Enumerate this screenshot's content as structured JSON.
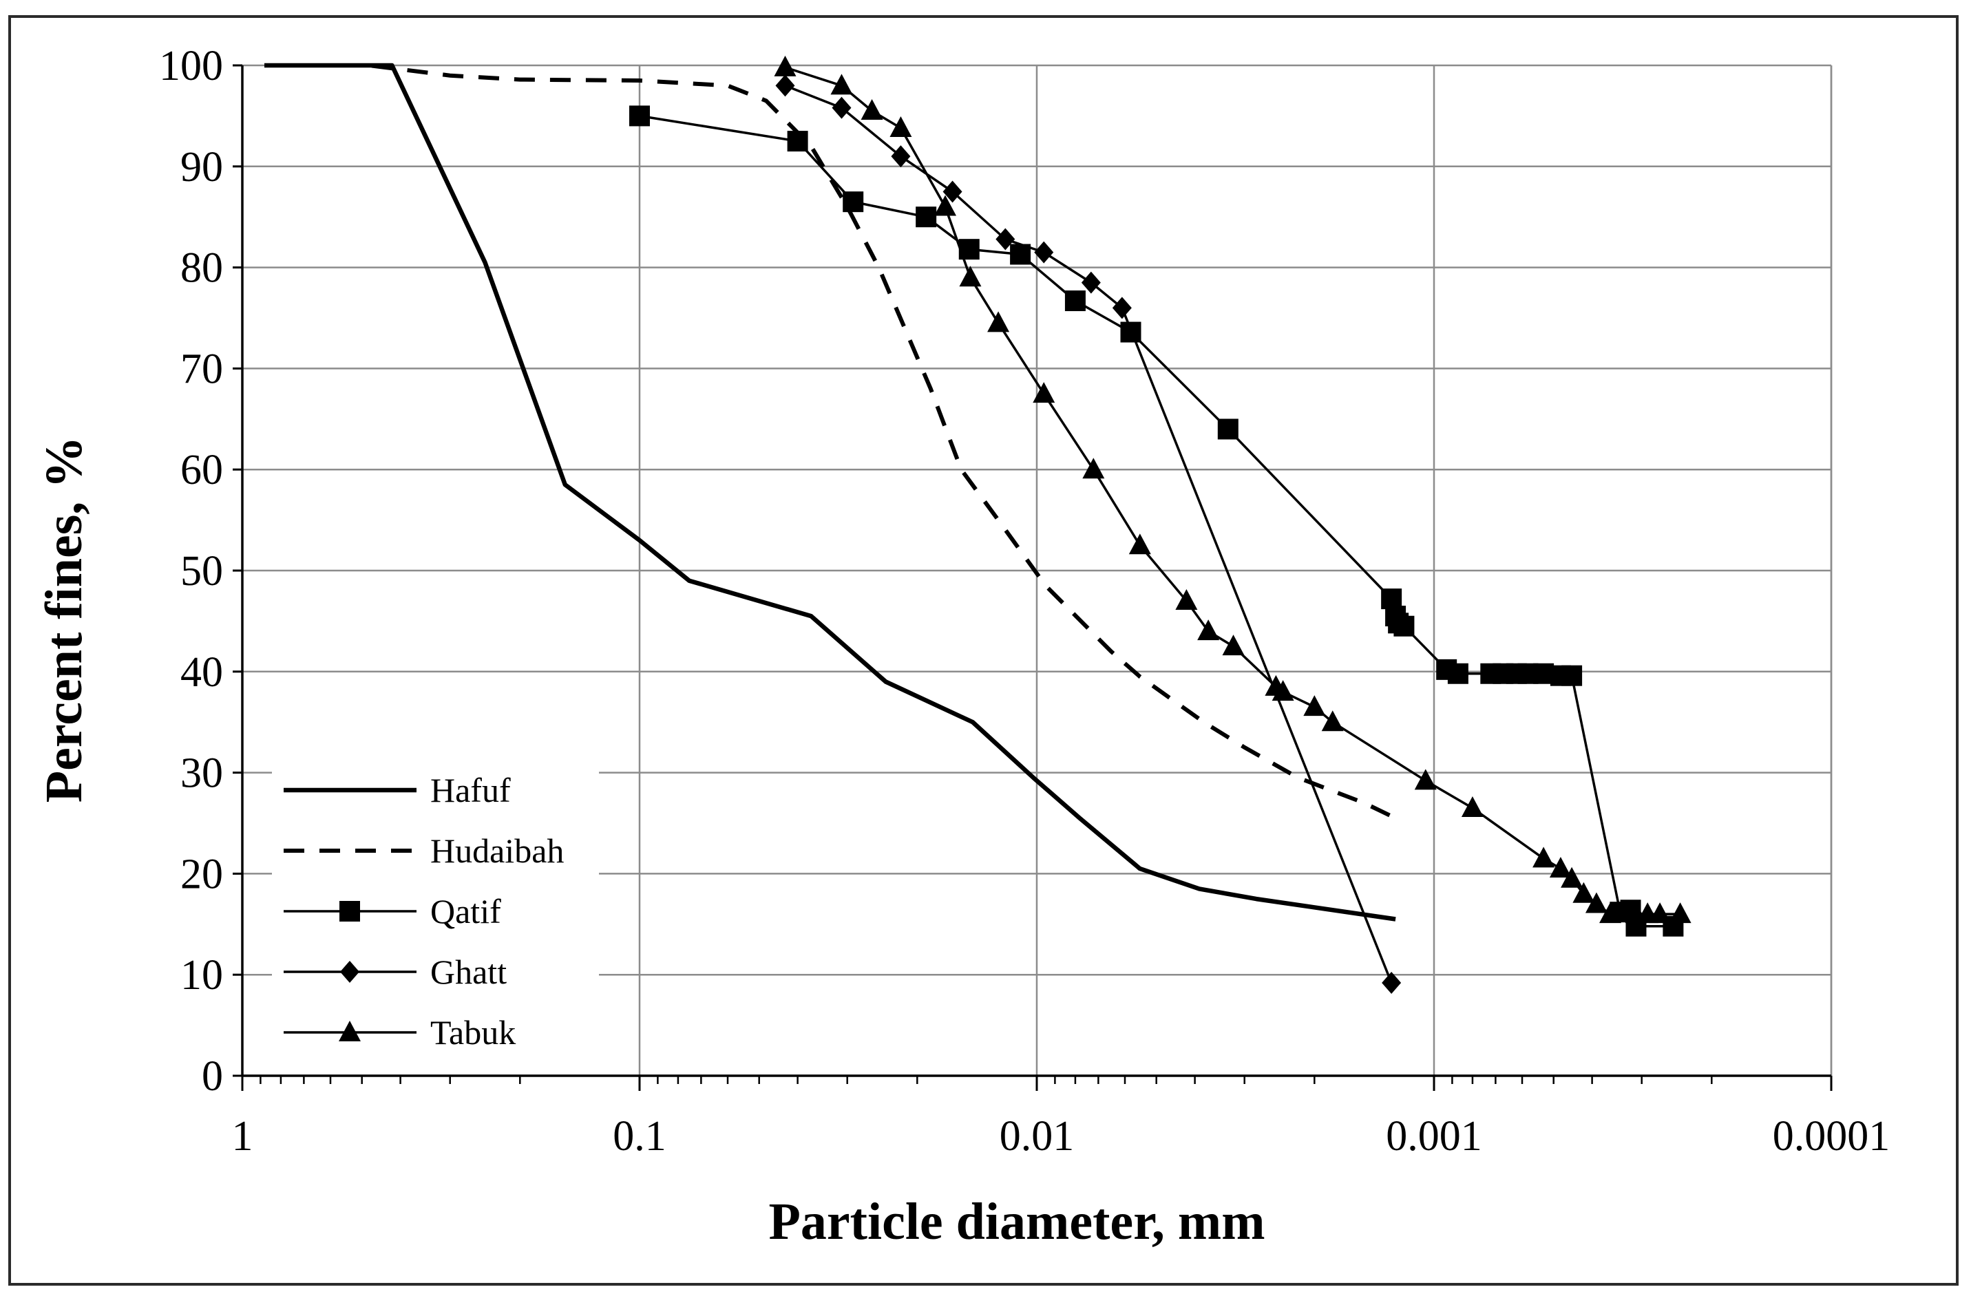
{
  "chart_data": {
    "type": "line",
    "title": "",
    "xlabel": "Particle diameter, mm",
    "ylabel": "Percent fines, %",
    "xscale": "log",
    "xaxis_reversed": true,
    "xlim": [
      1,
      0.0001
    ],
    "ylim": [
      0,
      100
    ],
    "x_ticks": [
      {
        "value": 1,
        "label": "1"
      },
      {
        "value": 0.1,
        "label": "0.1"
      },
      {
        "value": 0.01,
        "label": "0.01"
      },
      {
        "value": 0.001,
        "label": "0.001"
      },
      {
        "value": 0.0001,
        "label": "0.0001"
      }
    ],
    "y_ticks": [
      0,
      10,
      20,
      30,
      40,
      50,
      60,
      70,
      80,
      90,
      100
    ],
    "grid": true,
    "legend_position": "bottom-left",
    "series": [
      {
        "name": "Hafuf",
        "style": "solid-thick",
        "marker": "none",
        "x": [
          0.88,
          0.42,
          0.245,
          0.154,
          0.1,
          0.075,
          0.037,
          0.024,
          0.0145,
          0.0102,
          0.0078,
          0.0055,
          0.0039,
          0.0028,
          0.00125
        ],
        "y": [
          100,
          100,
          80.5,
          58.5,
          53,
          49,
          45.5,
          39,
          35,
          29.5,
          25.5,
          20.5,
          18.5,
          17.5,
          15.5
        ]
      },
      {
        "name": "Hudaibah",
        "style": "dashed",
        "marker": "none",
        "x": [
          0.88,
          0.48,
          0.3,
          0.2,
          0.1,
          0.06,
          0.048,
          0.037,
          0.03,
          0.025,
          0.0185,
          0.0155,
          0.0125,
          0.0095,
          0.0065,
          0.0055,
          0.0038,
          0.003,
          0.0022,
          0.0015,
          0.00125
        ],
        "y": [
          100,
          100,
          99,
          98.6,
          98.5,
          98,
          96.5,
          92,
          86,
          80,
          68,
          60,
          55,
          48.5,
          42,
          39.5,
          35,
          32.5,
          29.5,
          27,
          25.5
        ]
      },
      {
        "name": "Qatif",
        "style": "solid",
        "marker": "square",
        "x": [
          0.1,
          0.04,
          0.029,
          0.019,
          0.0148,
          0.011,
          0.008,
          0.0058,
          0.0033,
          0.00128,
          0.00125,
          0.00123,
          0.00119,
          0.00093,
          0.00087,
          0.00072,
          0.00067,
          0.00062,
          0.00058,
          0.00053,
          0.00048,
          0.00045,
          0.00034,
          0.00032,
          0.00031,
          0.00025
        ],
        "y": [
          95,
          92.5,
          86.5,
          85,
          81.8,
          81.3,
          76.7,
          73.6,
          64,
          47.2,
          45.5,
          44.8,
          44.5,
          40.2,
          39.8,
          39.8,
          39.8,
          39.8,
          39.8,
          39.8,
          39.6,
          39.6,
          16.2,
          16.4,
          14.8,
          14.8
        ]
      },
      {
        "name": "Ghatt",
        "style": "solid",
        "marker": "diamond",
        "x": [
          0.043,
          0.031,
          0.022,
          0.0163,
          0.012,
          0.0096,
          0.0073,
          0.0061,
          0.00128
        ],
        "y": [
          98,
          95.8,
          91,
          87.5,
          82.8,
          81.5,
          78.5,
          76,
          9.2
        ]
      },
      {
        "name": "Tabuk",
        "style": "solid",
        "marker": "triangle",
        "x": [
          0.043,
          0.031,
          0.026,
          0.022,
          0.017,
          0.0147,
          0.0125,
          0.0096,
          0.0072,
          0.0055,
          0.0042,
          0.0037,
          0.0032,
          0.0025,
          0.0024,
          0.002,
          0.0018,
          0.00105,
          0.0008,
          0.00053,
          0.00048,
          0.00045,
          0.00042,
          0.00039,
          0.00036,
          0.00033,
          0.00031,
          0.00029,
          0.00027,
          0.00024
        ],
        "y": [
          99.8,
          98,
          95.5,
          93.8,
          86,
          79,
          74.5,
          67.5,
          60,
          52.5,
          47,
          44,
          42.5,
          38.5,
          38,
          36.5,
          35,
          29.2,
          26.5,
          21.5,
          20.5,
          19.5,
          18,
          17,
          16,
          16.2,
          16,
          16,
          16,
          16
        ]
      }
    ]
  }
}
